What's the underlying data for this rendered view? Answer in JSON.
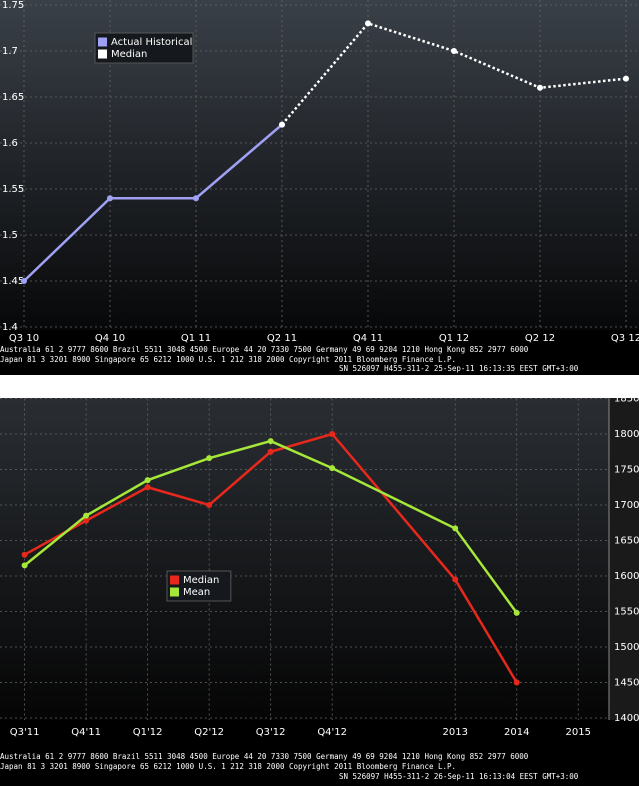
{
  "chart_data": [
    {
      "type": "line",
      "categories": [
        "Q3 10",
        "Q4 10",
        "Q1 11",
        "Q2 11",
        "Q4 11",
        "Q1 12",
        "Q2 12",
        "Q3 12"
      ],
      "series": [
        {
          "name": "Actual Historical",
          "color": "#a0a0f4",
          "line_style": "solid",
          "values": [
            1.45,
            1.54,
            1.54,
            1.62,
            null,
            null,
            null,
            null
          ]
        },
        {
          "name": "Median",
          "color": "#ffffff",
          "line_style": "dotted",
          "values": [
            null,
            null,
            null,
            1.62,
            1.73,
            1.7,
            1.66,
            1.67
          ]
        }
      ],
      "ylim": [
        1.4,
        1.75
      ],
      "yticks": [
        1.4,
        1.45,
        1.5,
        1.55,
        1.6,
        1.65,
        1.7,
        1.75
      ],
      "grid": true,
      "y_axis_side": "left",
      "legend": "upper left",
      "footer": [
        "Australia 61 2 9777 8600 Brazil 5511 3048 4500 Europe 44 20 7330 7500 Germany 49 69 9204 1210 Hong Kong 852 2977 6000",
        "Japan 81 3 3201 8900          Singapore 65 6212 1000          U.S. 1 212 318 2000          Copyright 2011 Bloomberg Finance L.P.",
        "SN 526097 H455-311-2 25-Sep-11 16:13:35 EEST GMT+3:00"
      ]
    },
    {
      "type": "line",
      "x": [
        0,
        1,
        2,
        3,
        4,
        5,
        7,
        8
      ],
      "xlim": [
        -0.4,
        9.5
      ],
      "xticks": [
        {
          "value": 0,
          "label": "Q3'11"
        },
        {
          "value": 1,
          "label": "Q4'11"
        },
        {
          "value": 2,
          "label": "Q1'12"
        },
        {
          "value": 3,
          "label": "Q2'12"
        },
        {
          "value": 4,
          "label": "Q3'12"
        },
        {
          "value": 5,
          "label": "Q4'12"
        },
        {
          "value": 7,
          "label": "2013"
        },
        {
          "value": 8,
          "label": "2014"
        },
        {
          "value": 9,
          "label": "2015"
        }
      ],
      "series": [
        {
          "name": "Median",
          "color": "#e8281c",
          "line_style": "solid",
          "values": [
            1630,
            1678,
            1725,
            1700,
            1775,
            1800,
            1595,
            1450
          ]
        },
        {
          "name": "Mean",
          "color": "#a6e83a",
          "line_style": "solid",
          "values": [
            1615,
            1685,
            1735,
            1766,
            1790,
            1752,
            1667,
            1548
          ]
        }
      ],
      "ylim": [
        1400,
        1850
      ],
      "yticks": [
        1400,
        1450,
        1500,
        1550,
        1600,
        1650,
        1700,
        1750,
        1800,
        1850
      ],
      "grid": true,
      "y_axis_side": "right",
      "legend": "center left",
      "footer": [
        "Australia 61 2 9777 8600 Brazil 5511 3048 4500 Europe 44 20 7330 7500 Germany 49 69 9204 1210 Hong Kong 852 2977 6000",
        "Japan 81 3 3201 8900          Singapore 65 6212 1000          U.S. 1 212 318 2000          Copyright 2011 Bloomberg Finance L.P.",
        "SN 526097 H455-311-2 26-Sep-11 16:13:04 EEST GMT+3:00"
      ]
    }
  ]
}
